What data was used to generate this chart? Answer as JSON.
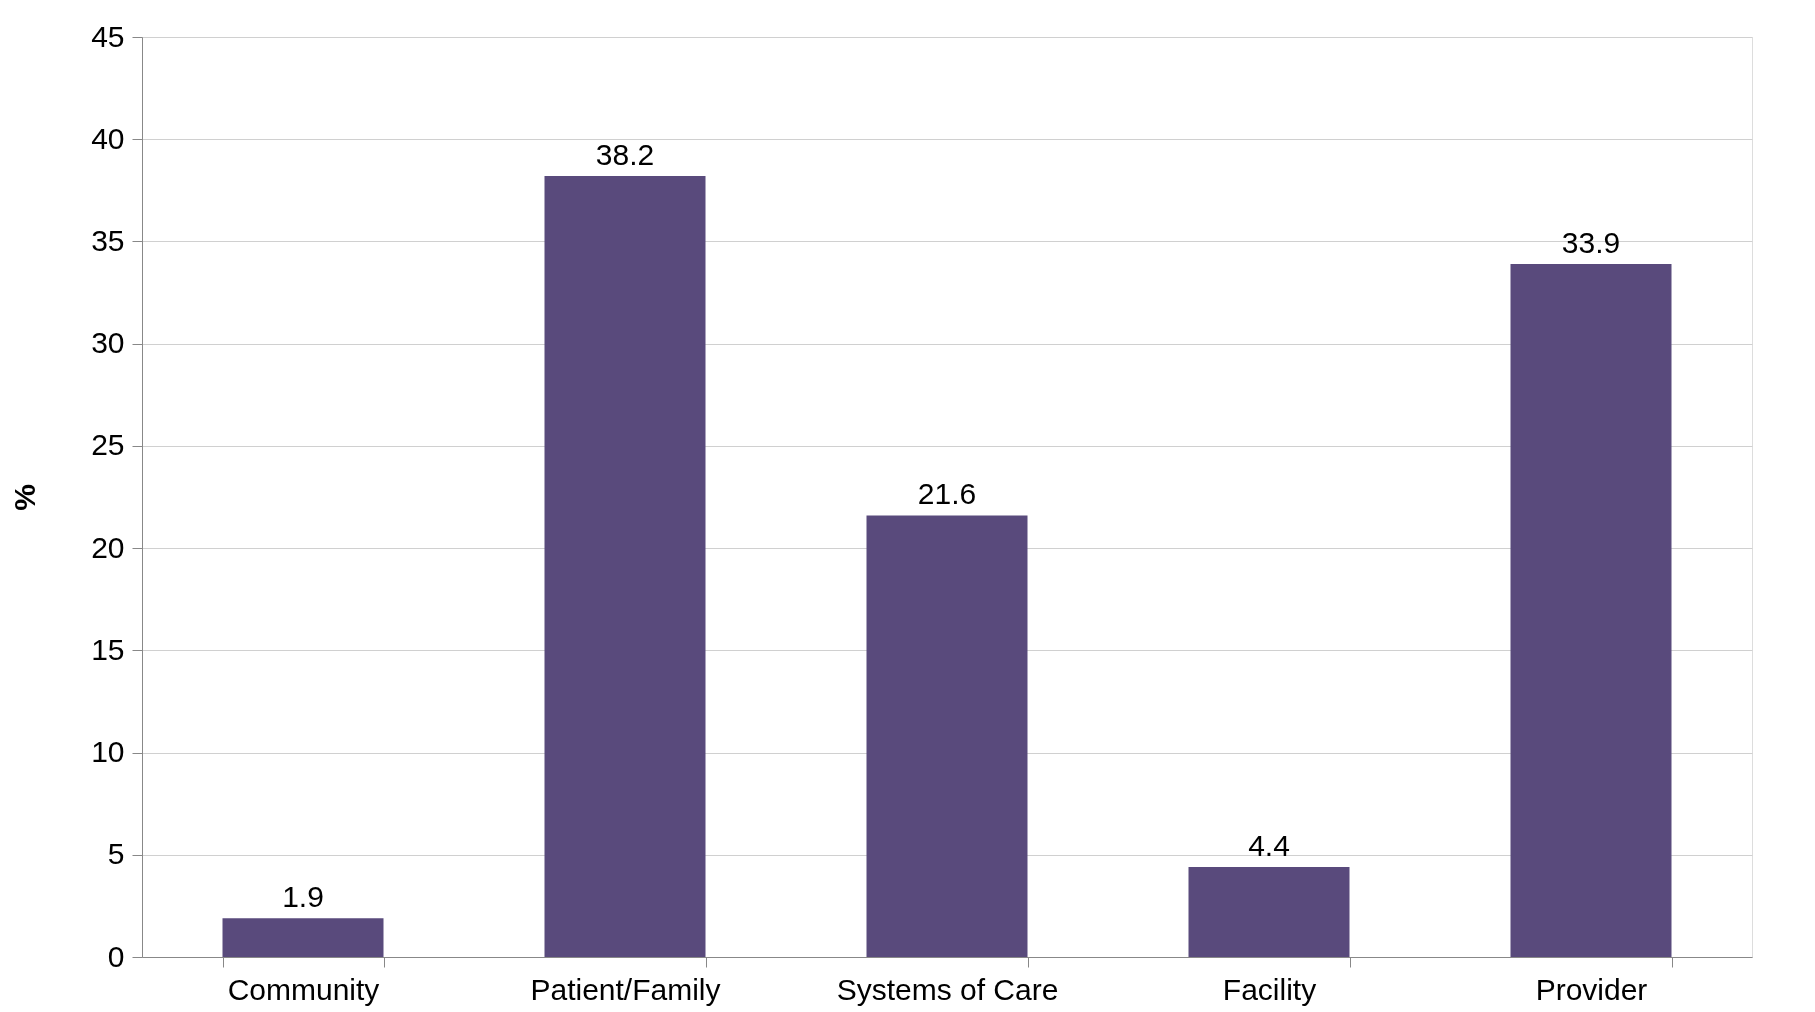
{
  "chart_data": {
    "type": "bar",
    "ylabel": "%",
    "categories": [
      "Community",
      "Patient/Family",
      "Systems of Care",
      "Facility",
      "Provider"
    ],
    "values": [
      1.9,
      38.2,
      21.6,
      4.4,
      33.9
    ],
    "color": "#594a7c",
    "ylim": [
      0,
      45
    ],
    "yticks": [
      0,
      5,
      10,
      15,
      20,
      25,
      30,
      35,
      40,
      45
    ],
    "grid": "y",
    "data_labels": true
  }
}
